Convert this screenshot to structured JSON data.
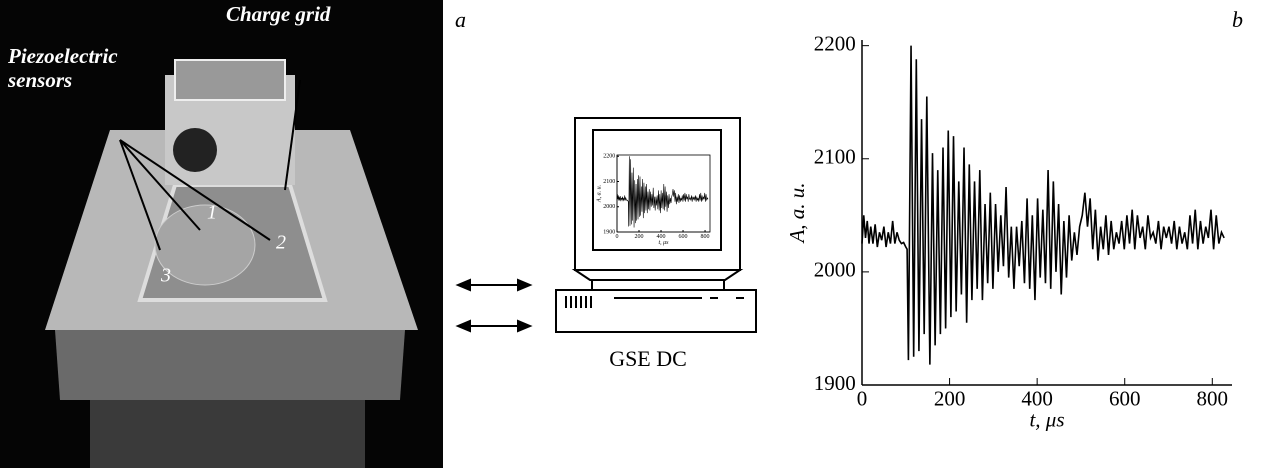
{
  "figure": {
    "panel_labels": [
      "a",
      "b"
    ],
    "photo": {
      "sensors_label": [
        "Piezoelectric",
        "sensors"
      ],
      "grid_label": "Charge grid",
      "sensor_numbers": [
        "1",
        "2",
        "3"
      ]
    },
    "computer_label": "GSE DC"
  },
  "chart_data": {
    "type": "line",
    "xlabel": "t, μs",
    "ylabel": "A, a. u.",
    "xlim": [
      0,
      845
    ],
    "ylim": [
      1900,
      2205
    ],
    "xticks": [
      0,
      200,
      400,
      600,
      800
    ],
    "yticks": [
      1900,
      2000,
      2100,
      2200
    ],
    "series": [
      {
        "color": "#000000",
        "x": [
          0,
          4,
          8,
          12,
          16,
          20,
          25,
          30,
          35,
          40,
          45,
          50,
          55,
          60,
          65,
          70,
          75,
          80,
          85,
          90,
          95,
          100,
          103,
          106,
          112,
          118,
          124,
          130,
          136,
          142,
          148,
          155,
          161,
          167,
          173,
          179,
          185,
          191,
          197,
          203,
          209,
          215,
          221,
          227,
          233,
          239,
          245,
          251,
          257,
          263,
          269,
          275,
          281,
          287,
          293,
          299,
          305,
          311,
          317,
          323,
          329,
          335,
          341,
          347,
          353,
          359,
          365,
          371,
          377,
          383,
          389,
          395,
          401,
          407,
          413,
          419,
          425,
          431,
          437,
          443,
          449,
          455,
          461,
          467,
          473,
          479,
          485,
          491,
          497,
          503,
          509,
          515,
          521,
          527,
          533,
          539,
          545,
          551,
          557,
          563,
          569,
          575,
          581,
          587,
          593,
          599,
          605,
          611,
          617,
          623,
          629,
          635,
          641,
          647,
          653,
          659,
          665,
          671,
          677,
          683,
          689,
          695,
          701,
          707,
          713,
          719,
          725,
          731,
          737,
          743,
          749,
          755,
          761,
          767,
          773,
          779,
          785,
          791,
          797,
          803,
          809,
          815,
          821,
          827
        ],
        "values": [
          2025,
          2050,
          2030,
          2045,
          2025,
          2040,
          2025,
          2042,
          2022,
          2035,
          2028,
          2040,
          2022,
          2035,
          2025,
          2045,
          2025,
          2035,
          2028,
          2025,
          2026,
          2022,
          2020,
          1922,
          2200,
          1925,
          2188,
          1930,
          2135,
          1945,
          2155,
          1918,
          2105,
          1935,
          2090,
          1945,
          2110,
          1950,
          2125,
          1960,
          2120,
          1965,
          2080,
          1980,
          2110,
          1955,
          2095,
          1975,
          2080,
          1985,
          2090,
          1975,
          2060,
          1990,
          2070,
          1985,
          2060,
          2000,
          2050,
          2005,
          2075,
          1995,
          2040,
          1985,
          2040,
          2005,
          2045,
          1990,
          2065,
          1985,
          2050,
          1975,
          2065,
          1995,
          2055,
          1990,
          2090,
          1985,
          2080,
          2000,
          2060,
          1980,
          2045,
          1995,
          2050,
          2010,
          2035,
          2015,
          2040,
          2050,
          2070,
          2040,
          2065,
          2020,
          2055,
          2010,
          2040,
          2020,
          2050,
          2015,
          2045,
          2020,
          2035,
          2025,
          2045,
          2020,
          2050,
          2025,
          2055,
          2020,
          2050,
          2030,
          2040,
          2020,
          2050,
          2030,
          2035,
          2025,
          2045,
          2020,
          2040,
          2030,
          2040,
          2025,
          2045,
          2020,
          2040,
          2025,
          2035,
          2020,
          2050,
          2025,
          2055,
          2020,
          2045,
          2025,
          2040,
          2030,
          2055,
          2020,
          2050,
          2025,
          2035,
          2030
        ]
      }
    ]
  }
}
